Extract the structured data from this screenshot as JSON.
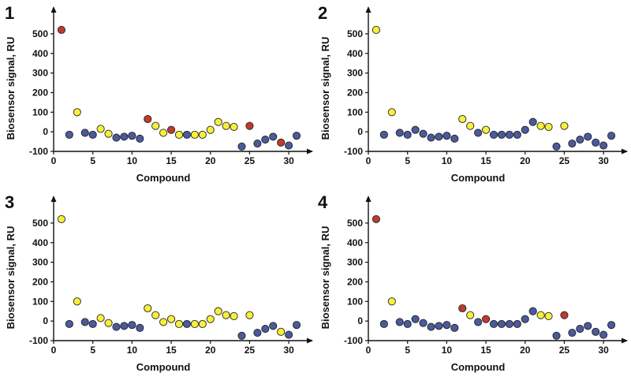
{
  "colors": {
    "blue": "#4a5a9c",
    "yellow": "#f7ef3a",
    "red": "#c23a2c",
    "axis": "#111111"
  },
  "chart_data": [
    {
      "type": "scatter",
      "panel_label": "1",
      "xlabel": "Compound",
      "ylabel": "Biosensor signal, RU",
      "xlim": [
        0,
        32
      ],
      "ylim": [
        -100,
        560
      ],
      "x_ticks": [
        0,
        5,
        10,
        15,
        20,
        25,
        30
      ],
      "y_ticks": [
        -100,
        0,
        100,
        200,
        300,
        400,
        500
      ],
      "grid": false,
      "points": [
        {
          "x": 1,
          "y": 520,
          "color": "red"
        },
        {
          "x": 2,
          "y": -15,
          "color": "blue"
        },
        {
          "x": 3,
          "y": 100,
          "color": "yellow"
        },
        {
          "x": 4,
          "y": -5,
          "color": "blue"
        },
        {
          "x": 5,
          "y": -15,
          "color": "blue"
        },
        {
          "x": 6,
          "y": 15,
          "color": "yellow"
        },
        {
          "x": 7,
          "y": -10,
          "color": "yellow"
        },
        {
          "x": 8,
          "y": -30,
          "color": "blue"
        },
        {
          "x": 9,
          "y": -25,
          "color": "blue"
        },
        {
          "x": 10,
          "y": -20,
          "color": "blue"
        },
        {
          "x": 11,
          "y": -35,
          "color": "blue"
        },
        {
          "x": 12,
          "y": 65,
          "color": "red"
        },
        {
          "x": 13,
          "y": 30,
          "color": "yellow"
        },
        {
          "x": 14,
          "y": -5,
          "color": "yellow"
        },
        {
          "x": 15,
          "y": 10,
          "color": "red"
        },
        {
          "x": 16,
          "y": -15,
          "color": "yellow"
        },
        {
          "x": 17,
          "y": -15,
          "color": "blue"
        },
        {
          "x": 18,
          "y": -15,
          "color": "yellow"
        },
        {
          "x": 19,
          "y": -15,
          "color": "yellow"
        },
        {
          "x": 20,
          "y": 10,
          "color": "yellow"
        },
        {
          "x": 21,
          "y": 50,
          "color": "yellow"
        },
        {
          "x": 22,
          "y": 30,
          "color": "yellow"
        },
        {
          "x": 23,
          "y": 25,
          "color": "yellow"
        },
        {
          "x": 24,
          "y": -75,
          "color": "blue"
        },
        {
          "x": 25,
          "y": 30,
          "color": "red"
        },
        {
          "x": 26,
          "y": -60,
          "color": "blue"
        },
        {
          "x": 27,
          "y": -40,
          "color": "blue"
        },
        {
          "x": 28,
          "y": -25,
          "color": "blue"
        },
        {
          "x": 29,
          "y": -55,
          "color": "red"
        },
        {
          "x": 30,
          "y": -70,
          "color": "blue"
        },
        {
          "x": 31,
          "y": -20,
          "color": "blue"
        }
      ]
    },
    {
      "type": "scatter",
      "panel_label": "2",
      "xlabel": "Compound",
      "ylabel": "Biosensor signal, RU",
      "xlim": [
        0,
        32
      ],
      "ylim": [
        -100,
        560
      ],
      "x_ticks": [
        0,
        5,
        10,
        15,
        20,
        25,
        30
      ],
      "y_ticks": [
        -100,
        0,
        100,
        200,
        300,
        400,
        500
      ],
      "grid": false,
      "points": [
        {
          "x": 1,
          "y": 520,
          "color": "yellow"
        },
        {
          "x": 2,
          "y": -15,
          "color": "blue"
        },
        {
          "x": 3,
          "y": 100,
          "color": "yellow"
        },
        {
          "x": 4,
          "y": -5,
          "color": "blue"
        },
        {
          "x": 5,
          "y": -15,
          "color": "blue"
        },
        {
          "x": 6,
          "y": 10,
          "color": "blue"
        },
        {
          "x": 7,
          "y": -10,
          "color": "blue"
        },
        {
          "x": 8,
          "y": -30,
          "color": "blue"
        },
        {
          "x": 9,
          "y": -25,
          "color": "blue"
        },
        {
          "x": 10,
          "y": -20,
          "color": "blue"
        },
        {
          "x": 11,
          "y": -35,
          "color": "blue"
        },
        {
          "x": 12,
          "y": 65,
          "color": "yellow"
        },
        {
          "x": 13,
          "y": 30,
          "color": "yellow"
        },
        {
          "x": 14,
          "y": -5,
          "color": "blue"
        },
        {
          "x": 15,
          "y": 10,
          "color": "yellow"
        },
        {
          "x": 16,
          "y": -15,
          "color": "blue"
        },
        {
          "x": 17,
          "y": -15,
          "color": "blue"
        },
        {
          "x": 18,
          "y": -15,
          "color": "blue"
        },
        {
          "x": 19,
          "y": -15,
          "color": "blue"
        },
        {
          "x": 20,
          "y": 10,
          "color": "blue"
        },
        {
          "x": 21,
          "y": 50,
          "color": "blue"
        },
        {
          "x": 22,
          "y": 30,
          "color": "yellow"
        },
        {
          "x": 23,
          "y": 25,
          "color": "yellow"
        },
        {
          "x": 24,
          "y": -75,
          "color": "blue"
        },
        {
          "x": 25,
          "y": 30,
          "color": "yellow"
        },
        {
          "x": 26,
          "y": -60,
          "color": "blue"
        },
        {
          "x": 27,
          "y": -40,
          "color": "blue"
        },
        {
          "x": 28,
          "y": -25,
          "color": "blue"
        },
        {
          "x": 29,
          "y": -55,
          "color": "blue"
        },
        {
          "x": 30,
          "y": -70,
          "color": "blue"
        },
        {
          "x": 31,
          "y": -20,
          "color": "blue"
        }
      ]
    },
    {
      "type": "scatter",
      "panel_label": "3",
      "xlabel": "Compound",
      "ylabel": "Biosensor signal, RU",
      "xlim": [
        0,
        32
      ],
      "ylim": [
        -100,
        560
      ],
      "x_ticks": [
        0,
        5,
        10,
        15,
        20,
        25,
        30
      ],
      "y_ticks": [
        -100,
        0,
        100,
        200,
        300,
        400,
        500
      ],
      "grid": false,
      "points": [
        {
          "x": 1,
          "y": 520,
          "color": "yellow"
        },
        {
          "x": 2,
          "y": -15,
          "color": "blue"
        },
        {
          "x": 3,
          "y": 100,
          "color": "yellow"
        },
        {
          "x": 4,
          "y": -5,
          "color": "blue"
        },
        {
          "x": 5,
          "y": -15,
          "color": "blue"
        },
        {
          "x": 6,
          "y": 15,
          "color": "yellow"
        },
        {
          "x": 7,
          "y": -10,
          "color": "yellow"
        },
        {
          "x": 8,
          "y": -30,
          "color": "blue"
        },
        {
          "x": 9,
          "y": -25,
          "color": "blue"
        },
        {
          "x": 10,
          "y": -20,
          "color": "blue"
        },
        {
          "x": 11,
          "y": -35,
          "color": "blue"
        },
        {
          "x": 12,
          "y": 65,
          "color": "yellow"
        },
        {
          "x": 13,
          "y": 30,
          "color": "yellow"
        },
        {
          "x": 14,
          "y": -5,
          "color": "yellow"
        },
        {
          "x": 15,
          "y": 10,
          "color": "yellow"
        },
        {
          "x": 16,
          "y": -15,
          "color": "yellow"
        },
        {
          "x": 17,
          "y": -15,
          "color": "blue"
        },
        {
          "x": 18,
          "y": -15,
          "color": "yellow"
        },
        {
          "x": 19,
          "y": -15,
          "color": "yellow"
        },
        {
          "x": 20,
          "y": 10,
          "color": "yellow"
        },
        {
          "x": 21,
          "y": 50,
          "color": "yellow"
        },
        {
          "x": 22,
          "y": 30,
          "color": "yellow"
        },
        {
          "x": 23,
          "y": 25,
          "color": "yellow"
        },
        {
          "x": 24,
          "y": -75,
          "color": "blue"
        },
        {
          "x": 25,
          "y": 30,
          "color": "yellow"
        },
        {
          "x": 26,
          "y": -60,
          "color": "blue"
        },
        {
          "x": 27,
          "y": -40,
          "color": "blue"
        },
        {
          "x": 28,
          "y": -25,
          "color": "blue"
        },
        {
          "x": 29,
          "y": -55,
          "color": "yellow"
        },
        {
          "x": 30,
          "y": -70,
          "color": "blue"
        },
        {
          "x": 31,
          "y": -20,
          "color": "blue"
        }
      ]
    },
    {
      "type": "scatter",
      "panel_label": "4",
      "xlabel": "Compound",
      "ylabel": "Biosensor signal, RU",
      "xlim": [
        0,
        32
      ],
      "ylim": [
        -100,
        560
      ],
      "x_ticks": [
        0,
        5,
        10,
        15,
        20,
        25,
        30
      ],
      "y_ticks": [
        -100,
        0,
        100,
        200,
        300,
        400,
        500
      ],
      "grid": false,
      "points": [
        {
          "x": 1,
          "y": 520,
          "color": "red"
        },
        {
          "x": 2,
          "y": -15,
          "color": "blue"
        },
        {
          "x": 3,
          "y": 100,
          "color": "yellow"
        },
        {
          "x": 4,
          "y": -5,
          "color": "blue"
        },
        {
          "x": 5,
          "y": -15,
          "color": "blue"
        },
        {
          "x": 6,
          "y": 10,
          "color": "blue"
        },
        {
          "x": 7,
          "y": -10,
          "color": "blue"
        },
        {
          "x": 8,
          "y": -30,
          "color": "blue"
        },
        {
          "x": 9,
          "y": -25,
          "color": "blue"
        },
        {
          "x": 10,
          "y": -20,
          "color": "blue"
        },
        {
          "x": 11,
          "y": -35,
          "color": "blue"
        },
        {
          "x": 12,
          "y": 65,
          "color": "red"
        },
        {
          "x": 13,
          "y": 30,
          "color": "yellow"
        },
        {
          "x": 14,
          "y": -5,
          "color": "blue"
        },
        {
          "x": 15,
          "y": 10,
          "color": "red"
        },
        {
          "x": 16,
          "y": -15,
          "color": "blue"
        },
        {
          "x": 17,
          "y": -15,
          "color": "blue"
        },
        {
          "x": 18,
          "y": -15,
          "color": "blue"
        },
        {
          "x": 19,
          "y": -15,
          "color": "blue"
        },
        {
          "x": 20,
          "y": 10,
          "color": "blue"
        },
        {
          "x": 21,
          "y": 50,
          "color": "blue"
        },
        {
          "x": 22,
          "y": 30,
          "color": "yellow"
        },
        {
          "x": 23,
          "y": 25,
          "color": "yellow"
        },
        {
          "x": 24,
          "y": -75,
          "color": "blue"
        },
        {
          "x": 25,
          "y": 30,
          "color": "red"
        },
        {
          "x": 26,
          "y": -60,
          "color": "blue"
        },
        {
          "x": 27,
          "y": -40,
          "color": "blue"
        },
        {
          "x": 28,
          "y": -25,
          "color": "blue"
        },
        {
          "x": 29,
          "y": -55,
          "color": "blue"
        },
        {
          "x": 30,
          "y": -70,
          "color": "blue"
        },
        {
          "x": 31,
          "y": -20,
          "color": "blue"
        }
      ]
    }
  ]
}
